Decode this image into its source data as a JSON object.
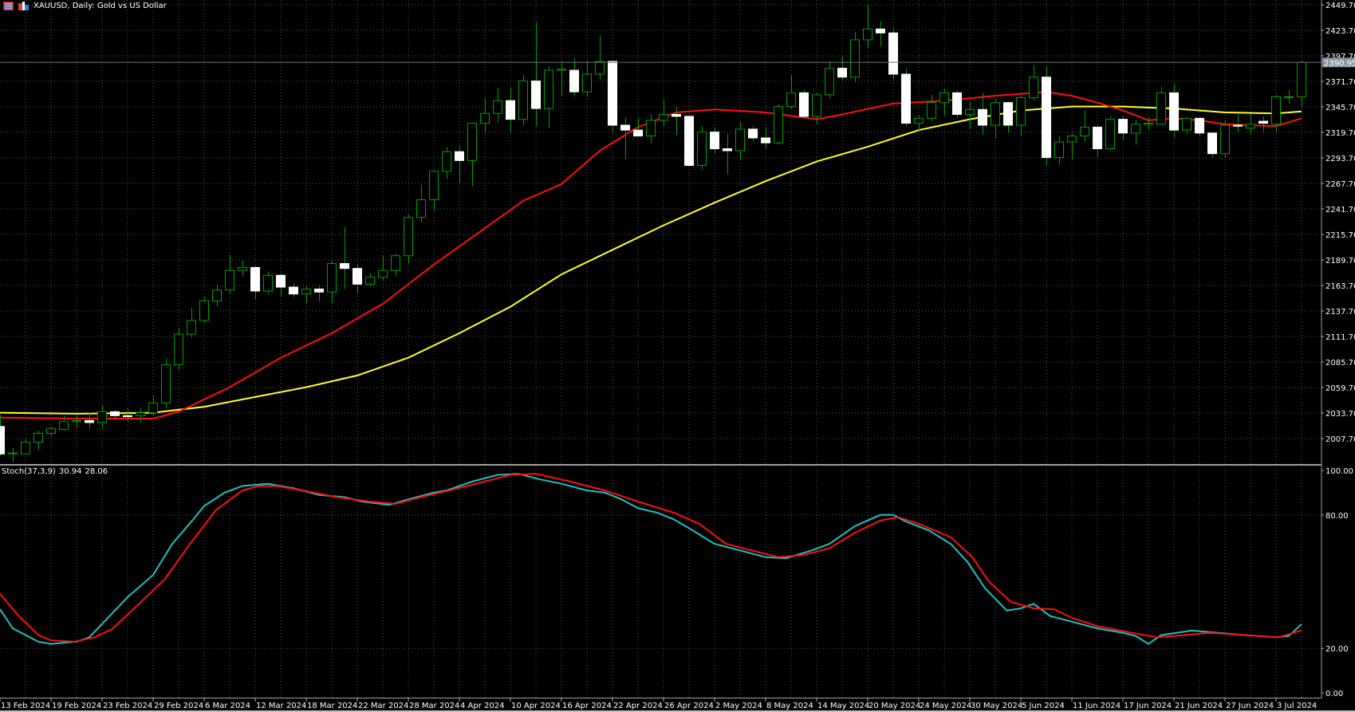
{
  "window": {
    "symbol_title": "XAUUSD, Daily:  Gold vs US Dollar"
  },
  "colors": {
    "background": "#000000",
    "bull": "#00a000",
    "bear": "#ffffff",
    "ma_fast": "#ff1010",
    "ma_slow": "#ffff20",
    "stoch_main": "#20c0c0",
    "stoch_signal": "#ff1010",
    "grid": "#5a5a5a"
  },
  "indicator": {
    "name": "Stoch(37,3,9)",
    "main_value": "30.94",
    "signal_value": "28.06"
  },
  "price_axis": {
    "labels": [
      "2449.70",
      "2423.70",
      "2397.70",
      "2371.70",
      "2345.70",
      "2319.70",
      "2293.70",
      "2267.70",
      "2241.70",
      "2215.70",
      "2189.70",
      "2163.70",
      "2137.70",
      "2111.70",
      "2085.70",
      "2059.70",
      "2033.70",
      "2007.70"
    ],
    "current_price": "2390.95"
  },
  "stoch_axis": {
    "labels": [
      "100.00",
      "80.00",
      "20.00",
      "0.00"
    ]
  },
  "chart_data": {
    "type": "candlestick",
    "title": "XAUUSD, Daily",
    "ylim": [
      1993,
      2449.7
    ],
    "date_labels": [
      "13 Feb 2024",
      "19 Feb 2024",
      "23 Feb 2024",
      "29 Feb 2024",
      "6 Mar 2024",
      "12 Mar 2024",
      "18 Mar 2024",
      "22 Mar 2024",
      "28 Mar 2024",
      "4 Apr 2024",
      "10 Apr 2024",
      "16 Apr 2024",
      "22 Apr 2024",
      "26 Apr 2024",
      "2 May 2024",
      "8 May 2024",
      "14 May 2024",
      "20 May 2024",
      "24 May 2024",
      "30 May 2024",
      "5 Jun 2024",
      "11 Jun 2024",
      "17 Jun 2024",
      "21 Jun 2024",
      "27 Jun 2024",
      "3 Jul 2024"
    ],
    "date_label_every_bars": 4,
    "ohlc": [
      [
        2020,
        2032,
        1990,
        1992
      ],
      [
        1992,
        1998,
        1984,
        1993
      ],
      [
        1992,
        2008,
        1991,
        2004
      ],
      [
        2004,
        2016,
        1996,
        2013
      ],
      [
        2013,
        2020,
        2010,
        2018
      ],
      [
        2017,
        2031,
        2016,
        2025
      ],
      [
        2025,
        2033,
        2019,
        2026
      ],
      [
        2026,
        2034,
        2018,
        2024
      ],
      [
        2024,
        2041,
        2018,
        2035
      ],
      [
        2035,
        2037,
        2027,
        2031
      ],
      [
        2031,
        2038,
        2025,
        2030
      ],
      [
        2031,
        2039,
        2024,
        2034
      ],
      [
        2034,
        2052,
        2031,
        2044
      ],
      [
        2044,
        2089,
        2039,
        2083
      ],
      [
        2083,
        2120,
        2078,
        2114
      ],
      [
        2114,
        2141,
        2110,
        2128
      ],
      [
        2128,
        2152,
        2125,
        2148
      ],
      [
        2148,
        2165,
        2142,
        2159
      ],
      [
        2159,
        2195,
        2155,
        2179
      ],
      [
        2179,
        2189,
        2173,
        2182
      ],
      [
        2182,
        2184,
        2150,
        2158
      ],
      [
        2158,
        2178,
        2155,
        2174
      ],
      [
        2174,
        2176,
        2153,
        2162
      ],
      [
        2162,
        2166,
        2152,
        2155
      ],
      [
        2155,
        2163,
        2146,
        2160
      ],
      [
        2160,
        2163,
        2148,
        2157
      ],
      [
        2157,
        2189,
        2146,
        2186
      ],
      [
        2186,
        2223,
        2160,
        2181
      ],
      [
        2181,
        2185,
        2156,
        2165
      ],
      [
        2165,
        2176,
        2163,
        2172
      ],
      [
        2172,
        2194,
        2169,
        2179
      ],
      [
        2179,
        2196,
        2173,
        2194
      ],
      [
        2194,
        2236,
        2186,
        2233
      ],
      [
        2233,
        2266,
        2228,
        2251
      ],
      [
        2251,
        2281,
        2239,
        2280
      ],
      [
        2280,
        2305,
        2272,
        2300
      ],
      [
        2300,
        2305,
        2268,
        2291
      ],
      [
        2291,
        2330,
        2265,
        2329
      ],
      [
        2329,
        2354,
        2319,
        2339
      ],
      [
        2339,
        2365,
        2330,
        2352
      ],
      [
        2352,
        2365,
        2320,
        2333
      ],
      [
        2333,
        2378,
        2327,
        2372
      ],
      [
        2372,
        2432,
        2326,
        2344
      ],
      [
        2344,
        2387,
        2324,
        2383
      ],
      [
        2383,
        2392,
        2357,
        2384
      ],
      [
        2383,
        2395,
        2356,
        2361
      ],
      [
        2361,
        2393,
        2356,
        2379
      ],
      [
        2379,
        2418,
        2374,
        2392
      ],
      [
        2392,
        2393,
        2319,
        2327
      ],
      [
        2327,
        2335,
        2292,
        2322
      ],
      [
        2322,
        2334,
        2316,
        2316
      ],
      [
        2316,
        2338,
        2308,
        2332
      ],
      [
        2332,
        2353,
        2326,
        2338
      ],
      [
        2338,
        2346,
        2317,
        2336
      ],
      [
        2336,
        2336,
        2285,
        2286
      ],
      [
        2286,
        2326,
        2282,
        2320
      ],
      [
        2320,
        2325,
        2298,
        2303
      ],
      [
        2303,
        2318,
        2277,
        2301
      ],
      [
        2301,
        2331,
        2292,
        2323
      ],
      [
        2323,
        2326,
        2310,
        2314
      ],
      [
        2314,
        2325,
        2303,
        2309
      ],
      [
        2309,
        2348,
        2307,
        2346
      ],
      [
        2346,
        2378,
        2344,
        2360
      ],
      [
        2360,
        2363,
        2334,
        2336
      ],
      [
        2336,
        2360,
        2328,
        2358
      ],
      [
        2358,
        2392,
        2354,
        2385
      ],
      [
        2385,
        2397,
        2373,
        2376
      ],
      [
        2376,
        2422,
        2371,
        2414
      ],
      [
        2414,
        2450,
        2406,
        2425
      ],
      [
        2425,
        2433,
        2407,
        2421
      ],
      [
        2421,
        2426,
        2374,
        2379
      ],
      [
        2379,
        2385,
        2326,
        2329
      ],
      [
        2329,
        2337,
        2321,
        2334
      ],
      [
        2334,
        2358,
        2331,
        2350
      ],
      [
        2350,
        2364,
        2337,
        2360
      ],
      [
        2360,
        2362,
        2334,
        2338
      ],
      [
        2338,
        2351,
        2323,
        2343
      ],
      [
        2343,
        2360,
        2317,
        2327
      ],
      [
        2327,
        2354,
        2314,
        2350
      ],
      [
        2350,
        2351,
        2319,
        2327
      ],
      [
        2327,
        2357,
        2316,
        2355
      ],
      [
        2355,
        2388,
        2352,
        2376
      ],
      [
        2376,
        2387,
        2286,
        2294
      ],
      [
        2294,
        2316,
        2287,
        2310
      ],
      [
        2310,
        2318,
        2292,
        2316
      ],
      [
        2316,
        2342,
        2310,
        2325
      ],
      [
        2325,
        2327,
        2295,
        2303
      ],
      [
        2303,
        2336,
        2301,
        2333
      ],
      [
        2333,
        2336,
        2312,
        2319
      ],
      [
        2319,
        2332,
        2307,
        2328
      ],
      [
        2328,
        2335,
        2322,
        2329
      ],
      [
        2328,
        2366,
        2327,
        2360
      ],
      [
        2360,
        2369,
        2315,
        2322
      ],
      [
        2322,
        2335,
        2318,
        2334
      ],
      [
        2334,
        2335,
        2316,
        2319
      ],
      [
        2319,
        2319,
        2294,
        2298
      ],
      [
        2298,
        2332,
        2294,
        2327
      ],
      [
        2327,
        2338,
        2320,
        2326
      ],
      [
        2324,
        2338,
        2318,
        2328
      ],
      [
        2331,
        2336,
        2320,
        2329
      ],
      [
        2328,
        2358,
        2320,
        2356
      ],
      [
        2356,
        2363,
        2349,
        2356
      ],
      [
        2356,
        2393,
        2346,
        2391
      ]
    ],
    "ma_fast": [
      [
        0,
        2029
      ],
      [
        6,
        2028
      ],
      [
        12,
        2028
      ],
      [
        14,
        2035
      ],
      [
        18,
        2060
      ],
      [
        22,
        2090
      ],
      [
        26,
        2115
      ],
      [
        30,
        2145
      ],
      [
        34,
        2185
      ],
      [
        38,
        2222
      ],
      [
        41,
        2250
      ],
      [
        44,
        2267
      ],
      [
        47,
        2301
      ],
      [
        50,
        2325
      ],
      [
        53,
        2340
      ],
      [
        56,
        2343
      ],
      [
        60,
        2340
      ],
      [
        64,
        2333
      ],
      [
        66,
        2338
      ],
      [
        70,
        2349
      ],
      [
        74,
        2352
      ],
      [
        78,
        2357
      ],
      [
        82,
        2361
      ],
      [
        84,
        2357
      ],
      [
        86,
        2350
      ],
      [
        88,
        2342
      ],
      [
        90,
        2332
      ],
      [
        92,
        2334
      ],
      [
        94,
        2332
      ],
      [
        96,
        2328
      ],
      [
        98,
        2327
      ],
      [
        100,
        2326
      ],
      [
        102,
        2334
      ]
    ],
    "ma_slow": [
      [
        0,
        2034
      ],
      [
        6,
        2033
      ],
      [
        12,
        2034
      ],
      [
        16,
        2040
      ],
      [
        20,
        2050
      ],
      [
        24,
        2060
      ],
      [
        28,
        2072
      ],
      [
        32,
        2090
      ],
      [
        36,
        2115
      ],
      [
        40,
        2142
      ],
      [
        44,
        2175
      ],
      [
        48,
        2200
      ],
      [
        52,
        2225
      ],
      [
        56,
        2248
      ],
      [
        60,
        2270
      ],
      [
        64,
        2290
      ],
      [
        68,
        2305
      ],
      [
        72,
        2322
      ],
      [
        76,
        2333
      ],
      [
        80,
        2342
      ],
      [
        84,
        2346
      ],
      [
        88,
        2346
      ],
      [
        92,
        2344
      ],
      [
        96,
        2340
      ],
      [
        100,
        2339
      ],
      [
        102,
        2341
      ]
    ],
    "stoch_main": [
      [
        0,
        37.6
      ],
      [
        1,
        29
      ],
      [
        3,
        23
      ],
      [
        4,
        22
      ],
      [
        6,
        23
      ],
      [
        7,
        25
      ],
      [
        8,
        31
      ],
      [
        10,
        43
      ],
      [
        12,
        53
      ],
      [
        13.5,
        67
      ],
      [
        15,
        77
      ],
      [
        16,
        84
      ],
      [
        17.6,
        90
      ],
      [
        19,
        93
      ],
      [
        21,
        94
      ],
      [
        23,
        92
      ],
      [
        25,
        89
      ],
      [
        27,
        88
      ],
      [
        28.4,
        86
      ],
      [
        30.5,
        84.5
      ],
      [
        32,
        87
      ],
      [
        34,
        90
      ],
      [
        35,
        91
      ],
      [
        37,
        95
      ],
      [
        39,
        98
      ],
      [
        40.6,
        98.5
      ],
      [
        42.3,
        96
      ],
      [
        44,
        94
      ],
      [
        46,
        91
      ],
      [
        47.4,
        90
      ],
      [
        48.7,
        87
      ],
      [
        50,
        83
      ],
      [
        51.5,
        81
      ],
      [
        52.8,
        78
      ],
      [
        54,
        74
      ],
      [
        56,
        67
      ],
      [
        58,
        64
      ],
      [
        60,
        61
      ],
      [
        61.6,
        60.5
      ],
      [
        63.6,
        64
      ],
      [
        65,
        67
      ],
      [
        67,
        75
      ],
      [
        69,
        80
      ],
      [
        70,
        80
      ],
      [
        71,
        77
      ],
      [
        72.8,
        73
      ],
      [
        74.5,
        67
      ],
      [
        75.8,
        59
      ],
      [
        77.2,
        47
      ],
      [
        78.9,
        37
      ],
      [
        80,
        38
      ],
      [
        81,
        40
      ],
      [
        82.3,
        34.5
      ],
      [
        84,
        32
      ],
      [
        86,
        29
      ],
      [
        88,
        27
      ],
      [
        89,
        25.6
      ],
      [
        90,
        22
      ],
      [
        91,
        26
      ],
      [
        93.4,
        28
      ],
      [
        95.5,
        27
      ],
      [
        97.5,
        26
      ],
      [
        100,
        25
      ],
      [
        101,
        25.6
      ],
      [
        102,
        30.9
      ]
    ],
    "stoch_signal": [
      [
        0,
        44.6
      ],
      [
        1.4,
        35
      ],
      [
        3,
        26
      ],
      [
        4,
        23.6
      ],
      [
        5.8,
        23
      ],
      [
        7.4,
        25
      ],
      [
        8.8,
        28.7
      ],
      [
        10.8,
        39.5
      ],
      [
        12.9,
        51
      ],
      [
        14.9,
        67
      ],
      [
        16.9,
        82
      ],
      [
        19,
        91
      ],
      [
        20.3,
        93
      ],
      [
        21.7,
        93
      ],
      [
        23.7,
        91
      ],
      [
        26.4,
        88
      ],
      [
        29,
        86
      ],
      [
        31,
        85
      ],
      [
        33,
        88
      ],
      [
        35.2,
        91
      ],
      [
        38,
        95
      ],
      [
        40,
        98
      ],
      [
        42,
        98.5
      ],
      [
        44.7,
        95
      ],
      [
        47.4,
        91
      ],
      [
        50,
        86
      ],
      [
        52.8,
        81
      ],
      [
        54.8,
        76
      ],
      [
        56.9,
        67
      ],
      [
        58.9,
        64
      ],
      [
        61,
        61
      ],
      [
        63,
        62
      ],
      [
        65,
        65
      ],
      [
        67,
        72
      ],
      [
        69,
        77.5
      ],
      [
        70.4,
        79
      ],
      [
        72,
        76
      ],
      [
        74.5,
        70
      ],
      [
        76.2,
        61
      ],
      [
        77.5,
        50
      ],
      [
        79.2,
        41
      ],
      [
        81,
        38
      ],
      [
        82.6,
        37.6
      ],
      [
        84,
        33.7
      ],
      [
        86,
        30
      ],
      [
        88.7,
        27
      ],
      [
        90.7,
        25
      ],
      [
        92.8,
        26
      ],
      [
        94.8,
        27
      ],
      [
        97.5,
        26
      ],
      [
        100.2,
        25
      ],
      [
        102,
        28.1
      ]
    ],
    "stoch_levels": [
      80,
      20
    ],
    "stoch_ylim": [
      0,
      100
    ]
  }
}
